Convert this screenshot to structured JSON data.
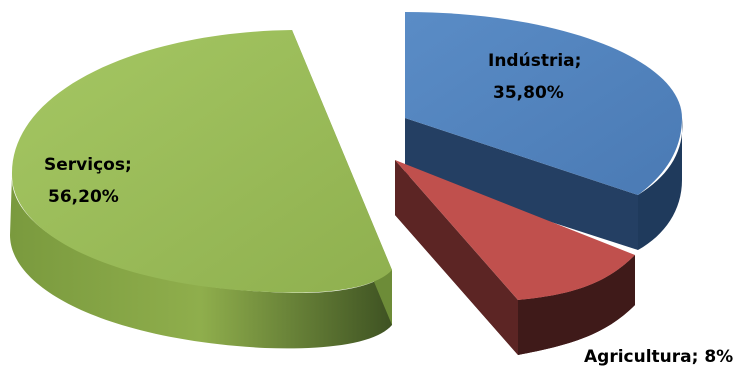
{
  "chart_data": {
    "type": "pie",
    "style": "3d-exploded",
    "title": "",
    "slices": [
      {
        "name": "Serviços",
        "value": 56.2,
        "label_name": "Serviços;",
        "label_value": "56,20%",
        "color": "#9bbb59"
      },
      {
        "name": "Indústria",
        "value": 35.8,
        "label_name": "Indústria;",
        "label_value": "35,80%",
        "color": "#4f81bd"
      },
      {
        "name": "Agricultura",
        "value": 8,
        "label_name": "Agricultura; 8%",
        "label_value": "",
        "color": "#c0504d"
      }
    ],
    "legend": "none"
  }
}
